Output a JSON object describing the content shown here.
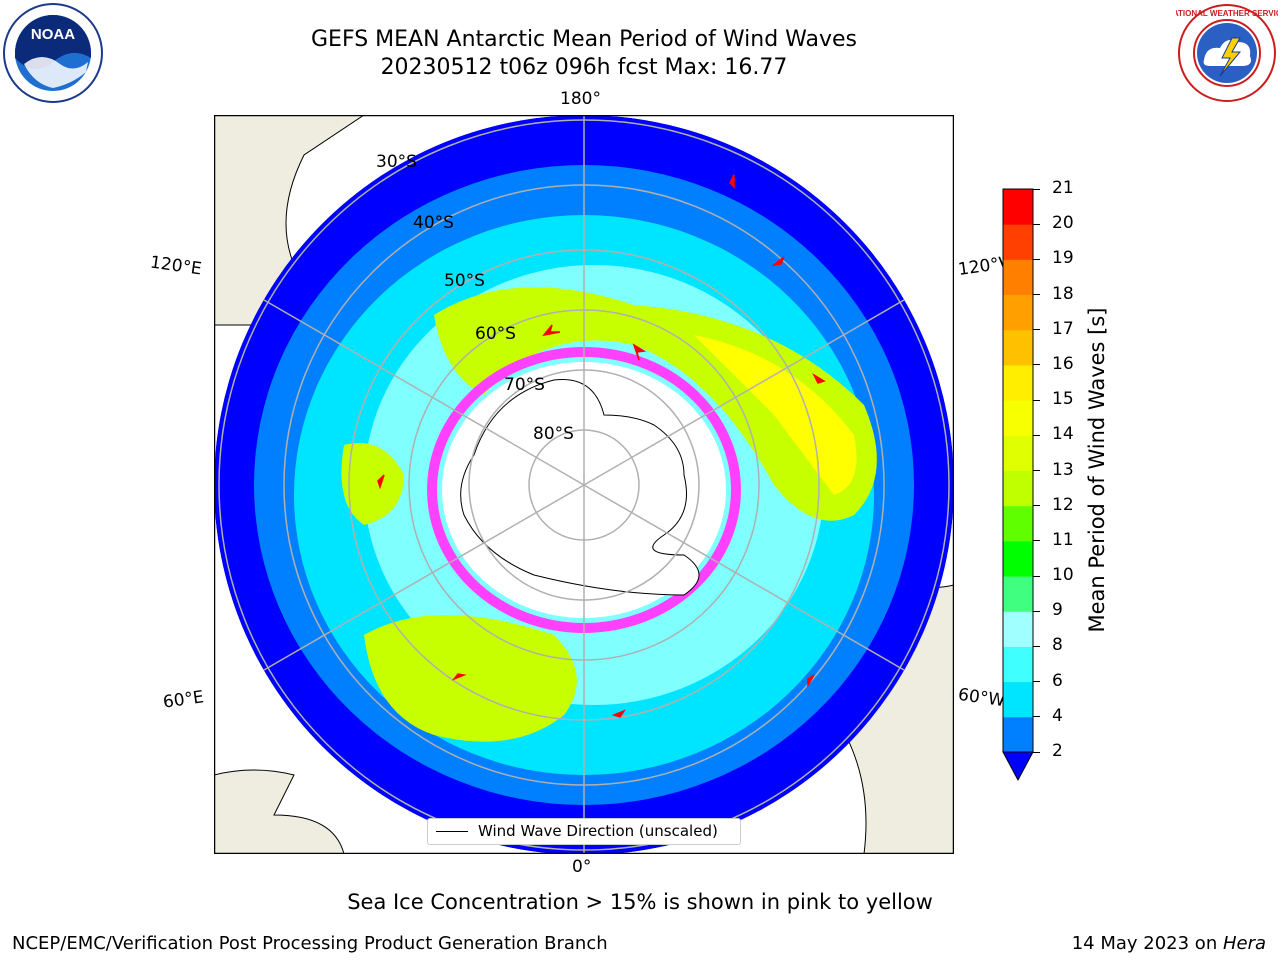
{
  "header": {
    "title_line1": "GEFS MEAN Antarctic Mean Period of Wind Waves",
    "title_line2": "20230512 t06z 096h fcst   Max: 16.77"
  },
  "logos": {
    "noaa_text": "NOAA",
    "nws_text": "NATIONAL WEATHER SERVICE"
  },
  "map": {
    "lon_labels": {
      "top": "180°",
      "bottom": "0°",
      "left_upper": "120°E",
      "left_lower": "60°E",
      "right_upper": "120°W",
      "right_lower": "60°W"
    },
    "lat_labels": [
      "30°S",
      "40°S",
      "50°S",
      "60°S",
      "70°S",
      "80°S"
    ],
    "legend_label": "Wind Wave Direction (unscaled)",
    "ocean_shading_colors": [
      "#0000ff",
      "#0080ff",
      "#00e5ff",
      "#80ffff",
      "#c8ff00",
      "#ffff00"
    ],
    "land_color": "#efede0",
    "sea_ice_colors": [
      "#ff40ff",
      "#ff80c0",
      "#ffd040"
    ],
    "arrow_color": "#ff0000"
  },
  "colorbar": {
    "label": "Mean Period of Wind Waves [s]",
    "levels": [
      2,
      4,
      6,
      8,
      9,
      10,
      11,
      12,
      13,
      14,
      15,
      16,
      17,
      18,
      19,
      20,
      21
    ],
    "colors": [
      "#0080ff",
      "#00e5ff",
      "#40ffff",
      "#a0ffff",
      "#40ff80",
      "#00ff00",
      "#60ff00",
      "#c0ff00",
      "#e0ff00",
      "#f8ff00",
      "#ffee00",
      "#ffc000",
      "#ffa000",
      "#ff8000",
      "#ff4000",
      "#ff0000"
    ],
    "extend_color": "#0000ff"
  },
  "footer": {
    "caption": "Sea Ice Concentration > 15% is shown in pink to yellow",
    "left": "NCEP/EMC/Verification Post Processing Product Generation Branch",
    "right_date": "14 May 2023 on ",
    "right_host": "Hera"
  }
}
